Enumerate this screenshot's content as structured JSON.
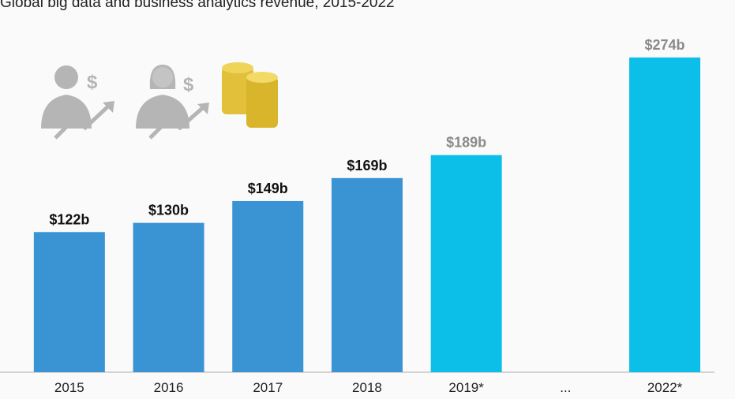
{
  "chart_data": {
    "type": "bar",
    "title": "Global big data and business analytics revenue, 2015-2022",
    "categories": [
      "2015",
      "2016",
      "2017",
      "2018",
      "2019*",
      "...",
      "2022*"
    ],
    "values": [
      122,
      130,
      149,
      169,
      189,
      null,
      274
    ],
    "value_labels": [
      "$122b",
      "$130b",
      "$149b",
      "$169b",
      "$189b",
      null,
      "$274b"
    ],
    "colors": [
      "#3a93d3",
      "#3a93d3",
      "#3a93d3",
      "#3a93d3",
      "#0bbfe9",
      null,
      "#0bbfe9"
    ],
    "label_colors": [
      "#111111",
      "#111111",
      "#111111",
      "#111111",
      "#8a8a8a",
      null,
      "#8a8a8a"
    ],
    "ylim": [
      0,
      300
    ]
  }
}
